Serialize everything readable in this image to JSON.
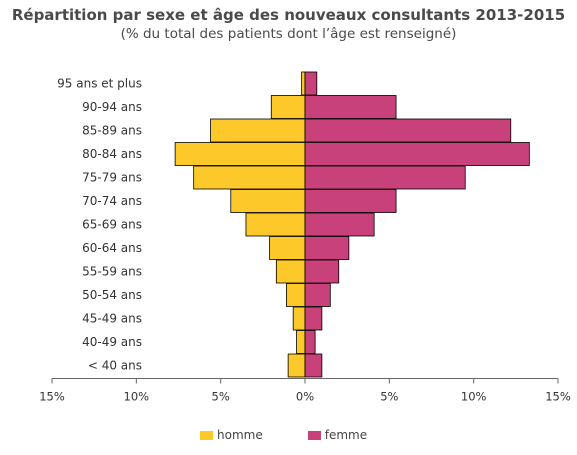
{
  "chart_data": {
    "type": "bar",
    "orientation": "horizontal-pyramid",
    "title": "Répartition par sexe et âge des nouveaux consultants 2013-2015",
    "subtitle": "(% du total des patients dont l’âge est renseigné)",
    "categories": [
      "95 ans et plus",
      "90-94 ans",
      "85-89 ans",
      "80-84 ans",
      "75-79 ans",
      "70-74 ans",
      "65-69 ans",
      "60-64 ans",
      "55-59 ans",
      "50-54 ans",
      "45-49 ans",
      "40-49 ans",
      "< 40 ans"
    ],
    "x_ticks": [
      "15%",
      "10%",
      "5%",
      "0%",
      "5%",
      "10%",
      "15%"
    ],
    "xlim": [
      -15,
      15
    ],
    "series": [
      {
        "name": "homme",
        "color": "#fcc82a",
        "values": [
          0.2,
          2.0,
          5.6,
          7.7,
          6.6,
          4.4,
          3.5,
          2.1,
          1.7,
          1.1,
          0.7,
          0.5,
          1.0
        ]
      },
      {
        "name": "femme",
        "color": "#c8417a",
        "values": [
          0.7,
          5.4,
          12.2,
          13.3,
          9.5,
          5.4,
          4.1,
          2.6,
          2.0,
          1.5,
          1.0,
          0.6,
          1.0
        ]
      }
    ],
    "legend_position": "bottom"
  }
}
